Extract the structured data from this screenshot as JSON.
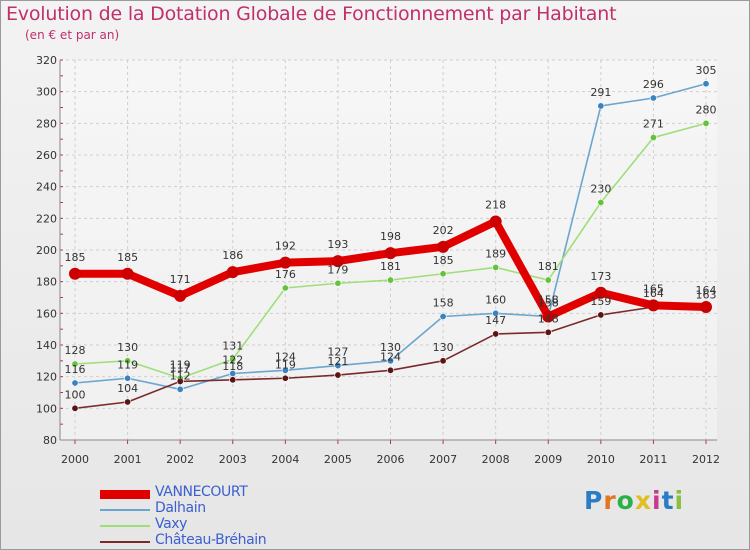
{
  "title": "Evolution de la Dotation Globale de Fonctionnement par Habitant",
  "subtitle": "(en € et par an)",
  "logo": {
    "text": "Proxiti",
    "letters": [
      "P",
      "r",
      "o",
      "x",
      "i",
      "t",
      "i"
    ],
    "colors": [
      "#2b7cc6",
      "#e07820",
      "#2bb04a",
      "#e0c020",
      "#c83a8a",
      "#2b7cc6",
      "#8ac040"
    ]
  },
  "chart_data": {
    "type": "line",
    "title": "Evolution de la Dotation Globale de Fonctionnement par Habitant",
    "subtitle": "(en € et par an)",
    "xlabel": "",
    "ylabel": "",
    "x": [
      "2000",
      "2001",
      "2002",
      "2003",
      "2004",
      "2005",
      "2006",
      "2007",
      "2008",
      "2009",
      "2010",
      "2011",
      "2012"
    ],
    "ylim": [
      80,
      320
    ],
    "yticks": [
      80,
      100,
      120,
      140,
      160,
      180,
      200,
      220,
      240,
      260,
      280,
      300,
      320
    ],
    "grid": true,
    "series": [
      {
        "name": "VANNECOURT",
        "color": "#e00000",
        "marker": "#cc0000",
        "emphasis": true,
        "values": [
          185,
          185,
          171,
          186,
          192,
          193,
          198,
          202,
          218,
          158,
          173,
          165,
          164
        ],
        "labels": [
          "185",
          "185",
          "171",
          "186",
          "192",
          "193",
          "198",
          "202",
          "218",
          "158",
          "173",
          "165",
          "164"
        ]
      },
      {
        "name": "Dalhain",
        "color": "#6aa6cf",
        "marker": "#3a82c0",
        "values": [
          116,
          119,
          112,
          122,
          124,
          127,
          130,
          158,
          160,
          158,
          291,
          296,
          305
        ],
        "labels": [
          "116",
          "119",
          "112",
          "122",
          "124",
          "127",
          "130",
          "158",
          "160",
          "158",
          "291",
          "296",
          "305"
        ]
      },
      {
        "name": "Vaxy",
        "color": "#9fdf7a",
        "marker": "#66c23e",
        "values": [
          128,
          130,
          119,
          131,
          176,
          179,
          181,
          185,
          189,
          181,
          230,
          271,
          280
        ],
        "labels": [
          "128",
          "130",
          "119",
          "131",
          "176",
          "179",
          "181",
          "185",
          "189",
          "181",
          "230",
          "271",
          "280"
        ]
      },
      {
        "name": "Château-Bréhain",
        "color": "#7a2a2a",
        "marker": "#5a1414",
        "values": [
          100,
          104,
          117,
          118,
          119,
          121,
          124,
          130,
          147,
          148,
          159,
          164,
          163
        ],
        "labels": [
          "100",
          "104",
          "117",
          "118",
          "119",
          "121",
          "124",
          "130",
          "147",
          "148",
          "159",
          "164",
          "163"
        ]
      }
    ]
  },
  "legend": [
    {
      "label": "VANNECOURT",
      "color": "#e00000",
      "text_color": "#3a5fd0"
    },
    {
      "label": "Dalhain",
      "color": "#6aa6cf",
      "text_color": "#3a5fd0"
    },
    {
      "label": "Vaxy",
      "color": "#9fdf7a",
      "text_color": "#3a5fd0"
    },
    {
      "label": "Château-Bréhain",
      "color": "#7a2a2a",
      "text_color": "#3a5fd0"
    }
  ]
}
